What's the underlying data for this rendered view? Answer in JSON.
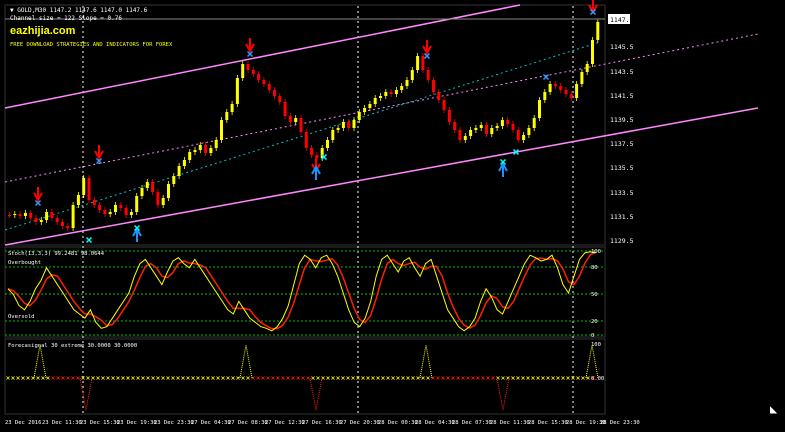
{
  "header": {
    "symbol_line": "▼ GOLD,M30  1147.2 1147.6 1147.0 1147.6",
    "channel_info": "Channel size = 122 Slope = 0.76",
    "brand": "eazhijia.com",
    "tagline": "FREE DOWNLOAD STRATEGIES AND INDICATORS FOR FOREX"
  },
  "price_axis": {
    "labels": [
      "1147.6",
      "1145.5",
      "1143.5",
      "1141.5",
      "1139.5",
      "1137.5",
      "1135.5",
      "1133.5",
      "1131.5",
      "1129.5"
    ],
    "current_price": "1147.6"
  },
  "stoch_panel": {
    "title": "Stoch(13,3,3) 99.2481 98.0644",
    "overbought_label": "Overbought",
    "oversold_label": "Oversold",
    "axis_labels": [
      "100",
      "80",
      "50",
      "20",
      "0"
    ]
  },
  "forecast_panel": {
    "title": "Forecasignal 30 extreme 30.0000 30.0000",
    "axis_labels": [
      "100",
      "0.00"
    ]
  },
  "time_axis": {
    "labels": [
      "23 Dec 2016",
      "23 Dec 11:30",
      "23 Dec 15:30",
      "23 Dec 19:30",
      "23 Dec 23:30",
      "27 Dec 04:30",
      "27 Dec 08:30",
      "27 Dec 12:30",
      "27 Dec 16:30",
      "27 Dec 20:30",
      "28 Dec 00:30",
      "28 Dec 04:30",
      "28 Dec 07:30",
      "28 Dec 11:30",
      "28 Dec 15:30",
      "28 Dec 19:30",
      "28 Dec 23:30"
    ]
  },
  "colors": {
    "background": "#000000",
    "bull_candle": "#ffff00",
    "bear_candle": "#ff0000",
    "channel": "#ff88ff",
    "stoch_main": "#ffff00",
    "stoch_signal": "#ff2000",
    "arrow_up": "#1e90ff",
    "arrow_down": "#ff0000",
    "grid_dotted": "#ffffff",
    "level_green": "#00c000"
  },
  "icons": {
    "up_arrow": "up-arrow-icon",
    "down_arrow": "down-arrow-icon",
    "cross": "cross-marker-icon"
  }
}
